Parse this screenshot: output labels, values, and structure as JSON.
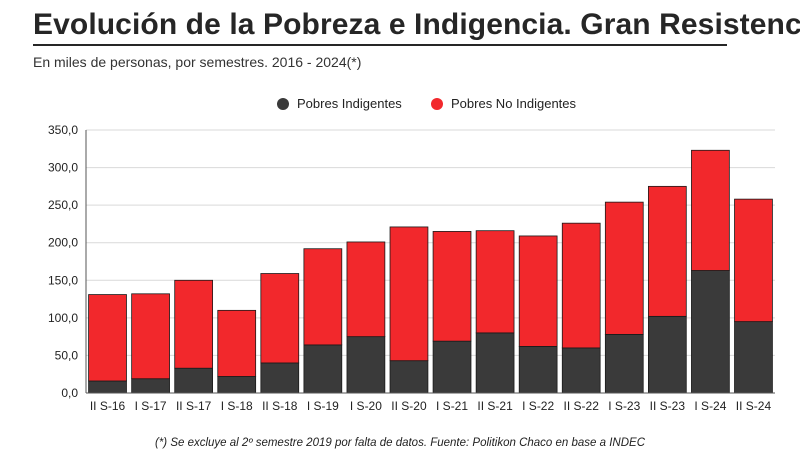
{
  "title": "Evolución de la Pobreza e Indigencia. Gran Resistencia",
  "subtitle": "En miles de personas, por semestres. 2016 - 2024(*)",
  "footnote": "(*) Se excluye al 2º semestre 2019 por falta de datos. Fuente: Politikon Chaco en base a INDEC",
  "colors": {
    "indigentes": "#3a3a3a",
    "no_indigentes": "#f2282c",
    "grid": "#d9d9d9",
    "axis": "#555555"
  },
  "chart_data": {
    "type": "bar",
    "stacked": true,
    "categories": [
      "II S-16",
      "I S-17",
      "II S-17",
      "I S-18",
      "II S-18",
      "I S-19",
      "I S-20",
      "II S-20",
      "I S-21",
      "II S-21",
      "I S-22",
      "II S-22",
      "I S-23",
      "II S-23",
      "I S-24",
      "II S-24"
    ],
    "series": [
      {
        "name": "Pobres Indigentes",
        "values": [
          16,
          19,
          33,
          22,
          40,
          64,
          75,
          43,
          69,
          80,
          62,
          60,
          78,
          102,
          163,
          95
        ]
      },
      {
        "name": "Pobres No Indigentes",
        "values": [
          115,
          113,
          117,
          88,
          119,
          128,
          126,
          178,
          146,
          136,
          147,
          166,
          176,
          173,
          160,
          163
        ]
      }
    ],
    "yticks": [
      "0,0",
      "50,0",
      "100,0",
      "150,0",
      "200,0",
      "250,0",
      "300,0",
      "350,0"
    ],
    "ylim": [
      0,
      350
    ],
    "grid": true,
    "legend_position": "top-center"
  }
}
